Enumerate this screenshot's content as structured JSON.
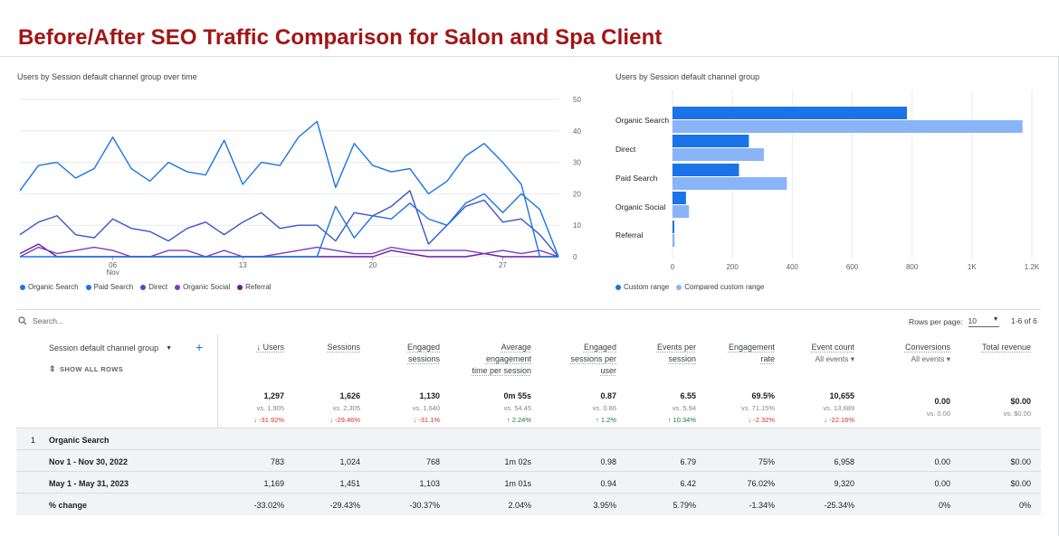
{
  "title": "Before/After SEO Traffic Comparison for Salon and Spa Client",
  "colors": {
    "title": "#a31515",
    "dark_blue": "#1a73e8",
    "light_blue": "#8ab4f8"
  },
  "line_chart": {
    "title": "Users by Session default channel group over time",
    "y_ticks": [
      "50",
      "40",
      "30",
      "20",
      "10",
      "0"
    ],
    "x_ticks": [
      {
        "day": "06",
        "month": "Nov"
      },
      {
        "day": "13",
        "month": ""
      },
      {
        "day": "20",
        "month": ""
      },
      {
        "day": "27",
        "month": ""
      }
    ],
    "legend": [
      "Organic Search",
      "Paid Search",
      "Direct",
      "Organic Social",
      "Referral"
    ]
  },
  "bar_chart": {
    "title": "Users by Session default channel group",
    "labels": [
      "Organic Search",
      "Direct",
      "Paid Search",
      "Organic Social",
      "Referral"
    ],
    "x_ticks": [
      "0",
      "200",
      "400",
      "600",
      "800",
      "1K",
      "1.2K"
    ],
    "legend": [
      "Custom range",
      "Compared custom range"
    ]
  },
  "chart_data": [
    {
      "type": "line",
      "title": "Users by Session default channel group over time",
      "x": [
        1,
        2,
        3,
        4,
        5,
        6,
        7,
        8,
        9,
        10,
        11,
        12,
        13,
        14,
        15,
        16,
        17,
        18,
        19,
        20,
        21,
        22,
        23,
        24,
        25,
        26,
        27,
        28,
        29,
        30
      ],
      "x_tick_labels": [
        "06 Nov",
        "13",
        "20",
        "27"
      ],
      "ylim": [
        0,
        50
      ],
      "series": [
        {
          "name": "Organic Search",
          "color": "#1a73e8",
          "values": [
            21,
            29,
            30,
            25,
            28,
            38,
            28,
            24,
            30,
            27,
            26,
            37,
            23,
            30,
            29,
            38,
            43,
            22,
            36,
            29,
            27,
            28,
            20,
            24,
            32,
            36,
            30,
            23,
            0,
            0
          ]
        },
        {
          "name": "Paid Search",
          "color": "#1a73e8",
          "values": [
            0,
            0,
            0,
            0,
            0,
            0,
            0,
            0,
            0,
            0,
            0,
            0,
            0,
            0,
            0,
            0,
            0,
            16,
            6,
            13,
            12,
            17,
            12,
            10,
            17,
            20,
            14,
            20,
            15,
            0
          ]
        },
        {
          "name": "Direct",
          "color": "#3c54c8",
          "values": [
            7,
            11,
            13,
            7,
            6,
            12,
            9,
            8,
            5,
            9,
            11,
            7,
            11,
            14,
            9,
            10,
            10,
            5,
            14,
            13,
            16,
            21,
            4,
            10,
            16,
            18,
            11,
            12,
            7,
            0
          ]
        },
        {
          "name": "Organic Social",
          "color": "#7e3bc2",
          "values": [
            0,
            3,
            1,
            2,
            3,
            2,
            0,
            0,
            2,
            2,
            0,
            2,
            0,
            0,
            1,
            2,
            3,
            2,
            1,
            1,
            3,
            2,
            2,
            2,
            2,
            1,
            2,
            1,
            2,
            0
          ]
        },
        {
          "name": "Referral",
          "color": "#6a1b9a",
          "values": [
            1,
            4,
            0,
            0,
            0,
            0,
            0,
            0,
            0,
            0,
            0,
            0,
            0,
            0,
            0,
            0,
            0,
            0,
            0,
            0,
            2,
            1,
            0,
            0,
            0,
            1,
            0,
            0,
            0,
            0
          ]
        }
      ]
    },
    {
      "type": "bar",
      "title": "Users by Session default channel group",
      "categories": [
        "Organic Search",
        "Direct",
        "Paid Search",
        "Organic Social",
        "Referral"
      ],
      "series": [
        {
          "name": "Custom range",
          "color": "#1a73e8",
          "values": [
            783,
            255,
            222,
            45,
            6
          ]
        },
        {
          "name": "Compared custom range",
          "color": "#8ab4f8",
          "values": [
            1169,
            305,
            382,
            55,
            7
          ]
        }
      ],
      "xlim": [
        0,
        1200
      ],
      "x_tick_labels": [
        "0",
        "200",
        "400",
        "600",
        "800",
        "1K",
        "1.2K"
      ]
    }
  ],
  "table": {
    "search_placeholder": "Search...",
    "rows_per_page_label": "Rows per page:",
    "rows_per_page_value": "10",
    "pagination": "1-6 of 6",
    "dimension_header": "Session default channel group",
    "show_all_rows": "SHOW ALL ROWS",
    "columns": [
      {
        "lines": [
          "↓ Users"
        ],
        "sub": ""
      },
      {
        "lines": [
          "Sessions"
        ],
        "sub": ""
      },
      {
        "lines": [
          "Engaged",
          "sessions"
        ],
        "sub": ""
      },
      {
        "lines": [
          "Average",
          "engagement",
          "time per session"
        ],
        "sub": ""
      },
      {
        "lines": [
          "Engaged",
          "sessions per",
          "user"
        ],
        "sub": ""
      },
      {
        "lines": [
          "Events per",
          "session"
        ],
        "sub": ""
      },
      {
        "lines": [
          "Engagement",
          "rate"
        ],
        "sub": ""
      },
      {
        "lines": [
          "Event count"
        ],
        "sub": "All events ▾"
      },
      {
        "lines": [
          "Conversions"
        ],
        "sub": "All events ▾"
      },
      {
        "lines": [
          "Total revenue"
        ],
        "sub": ""
      }
    ],
    "totals": [
      {
        "value": "1,297",
        "vs": "vs. 1,905",
        "change": "↓ -31.92%",
        "dir": "neg"
      },
      {
        "value": "1,626",
        "vs": "vs. 2,305",
        "change": "↓ -29.46%",
        "dir": "neg"
      },
      {
        "value": "1,130",
        "vs": "vs. 1,640",
        "change": "↓ -31.1%",
        "dir": "neg"
      },
      {
        "value": "0m 55s",
        "vs": "vs. 54.45",
        "change": "↑ 2.24%",
        "dir": "pos"
      },
      {
        "value": "0.87",
        "vs": "vs. 0.86",
        "change": "↑ 1.2%",
        "dir": "pos"
      },
      {
        "value": "6.55",
        "vs": "vs. 5.94",
        "change": "↑ 10.34%",
        "dir": "pos"
      },
      {
        "value": "69.5%",
        "vs": "vs. 71.15%",
        "change": "↓ -2.32%",
        "dir": "neg"
      },
      {
        "value": "10,655",
        "vs": "vs. 13,689",
        "change": "↓ -22.16%",
        "dir": "neg"
      },
      {
        "value": "0.00",
        "vs": "vs. 0.00",
        "change": "",
        "dir": "none"
      },
      {
        "value": "$0.00",
        "vs": "vs. $0.00",
        "change": "",
        "dir": "none"
      }
    ],
    "group_index": "1",
    "group_name": "Organic Search",
    "rows": [
      {
        "label": "Nov 1 - Nov 30, 2022",
        "values": [
          "783",
          "1,024",
          "768",
          "1m 02s",
          "0.98",
          "6.79",
          "75%",
          "6,958",
          "0.00",
          "$0.00"
        ]
      },
      {
        "label": "May 1 - May 31, 2023",
        "values": [
          "1,169",
          "1,451",
          "1,103",
          "1m 01s",
          "0.94",
          "6.42",
          "76.02%",
          "9,320",
          "0.00",
          "$0.00"
        ]
      },
      {
        "label": "% change",
        "values": [
          "-33.02%",
          "-29.43%",
          "-30.37%",
          "2.04%",
          "3.95%",
          "5.79%",
          "-1.34%",
          "-25.34%",
          "0%",
          "0%"
        ]
      }
    ]
  }
}
